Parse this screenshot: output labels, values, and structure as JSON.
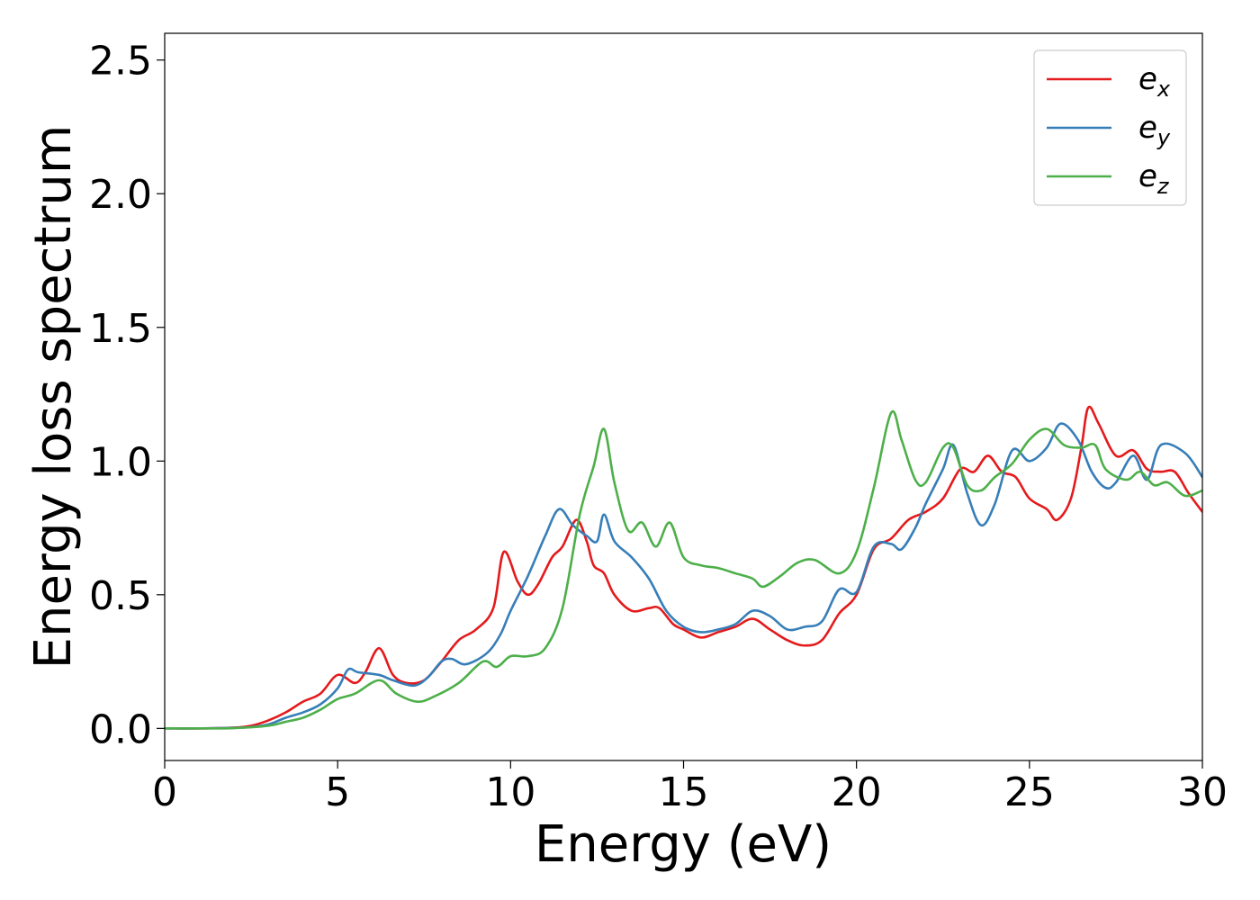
{
  "chart_data": {
    "type": "line",
    "xlabel": "Energy (eV)",
    "ylabel": "Energy loss spectrum",
    "xlim": [
      0,
      30
    ],
    "ylim": [
      -0.12,
      2.6
    ],
    "xticks": [
      0,
      5,
      10,
      15,
      20,
      25,
      30
    ],
    "xtick_labels": [
      "0",
      "5",
      "10",
      "15",
      "20",
      "25",
      "30"
    ],
    "yticks": [
      0.0,
      0.5,
      1.0,
      1.5,
      2.0,
      2.5
    ],
    "ytick_labels": [
      "0.0",
      "0.5",
      "1.0",
      "1.5",
      "2.0",
      "2.5"
    ],
    "grid": false,
    "legend_position": "top-right",
    "series": [
      {
        "name": "e",
        "subscript": "x",
        "color": "#e41a1c",
        "points": [
          [
            0,
            0
          ],
          [
            1,
            0
          ],
          [
            2,
            0.003
          ],
          [
            2.5,
            0.01
          ],
          [
            3,
            0.03
          ],
          [
            3.5,
            0.06
          ],
          [
            4,
            0.1
          ],
          [
            4.5,
            0.13
          ],
          [
            5,
            0.2
          ],
          [
            5.5,
            0.17
          ],
          [
            5.8,
            0.21
          ],
          [
            6.2,
            0.3
          ],
          [
            6.6,
            0.2
          ],
          [
            7,
            0.17
          ],
          [
            7.5,
            0.18
          ],
          [
            8,
            0.25
          ],
          [
            8.5,
            0.33
          ],
          [
            9,
            0.37
          ],
          [
            9.5,
            0.45
          ],
          [
            9.8,
            0.66
          ],
          [
            10.2,
            0.55
          ],
          [
            10.5,
            0.5
          ],
          [
            10.8,
            0.54
          ],
          [
            11.2,
            0.64
          ],
          [
            11.5,
            0.68
          ],
          [
            11.9,
            0.78
          ],
          [
            12.2,
            0.7
          ],
          [
            12.4,
            0.61
          ],
          [
            12.7,
            0.58
          ],
          [
            13,
            0.5
          ],
          [
            13.5,
            0.44
          ],
          [
            14,
            0.45
          ],
          [
            14.3,
            0.45
          ],
          [
            14.7,
            0.39
          ],
          [
            15,
            0.37
          ],
          [
            15.5,
            0.34
          ],
          [
            16,
            0.36
          ],
          [
            16.5,
            0.38
          ],
          [
            17,
            0.41
          ],
          [
            17.5,
            0.37
          ],
          [
            18,
            0.33
          ],
          [
            18.5,
            0.31
          ],
          [
            19,
            0.33
          ],
          [
            19.5,
            0.43
          ],
          [
            20,
            0.5
          ],
          [
            20.5,
            0.67
          ],
          [
            21,
            0.71
          ],
          [
            21.5,
            0.78
          ],
          [
            22,
            0.81
          ],
          [
            22.5,
            0.86
          ],
          [
            23,
            0.97
          ],
          [
            23.4,
            0.96
          ],
          [
            23.8,
            1.02
          ],
          [
            24.2,
            0.96
          ],
          [
            24.6,
            0.94
          ],
          [
            25,
            0.86
          ],
          [
            25.5,
            0.82
          ],
          [
            25.8,
            0.78
          ],
          [
            26.2,
            0.86
          ],
          [
            26.5,
            1.05
          ],
          [
            26.7,
            1.2
          ],
          [
            27,
            1.14
          ],
          [
            27.5,
            1.02
          ],
          [
            28,
            1.04
          ],
          [
            28.4,
            0.97
          ],
          [
            28.8,
            0.96
          ],
          [
            29.2,
            0.96
          ],
          [
            29.6,
            0.88
          ],
          [
            30,
            0.81
          ]
        ]
      },
      {
        "name": "e",
        "subscript": "y",
        "color": "#377eb8",
        "points": [
          [
            0,
            0
          ],
          [
            1,
            0
          ],
          [
            2,
            0.002
          ],
          [
            2.5,
            0.005
          ],
          [
            3,
            0.015
          ],
          [
            3.5,
            0.04
          ],
          [
            4,
            0.06
          ],
          [
            4.5,
            0.09
          ],
          [
            5,
            0.15
          ],
          [
            5.3,
            0.22
          ],
          [
            5.6,
            0.21
          ],
          [
            6.2,
            0.2
          ],
          [
            6.6,
            0.18
          ],
          [
            7.2,
            0.16
          ],
          [
            7.6,
            0.19
          ],
          [
            8,
            0.25
          ],
          [
            8.3,
            0.26
          ],
          [
            8.7,
            0.24
          ],
          [
            9.3,
            0.28
          ],
          [
            9.7,
            0.35
          ],
          [
            10,
            0.44
          ],
          [
            10.5,
            0.57
          ],
          [
            11,
            0.72
          ],
          [
            11.4,
            0.82
          ],
          [
            11.8,
            0.76
          ],
          [
            12.2,
            0.72
          ],
          [
            12.5,
            0.7
          ],
          [
            12.7,
            0.8
          ],
          [
            13,
            0.7
          ],
          [
            13.5,
            0.64
          ],
          [
            14,
            0.56
          ],
          [
            14.5,
            0.44
          ],
          [
            15,
            0.38
          ],
          [
            15.5,
            0.36
          ],
          [
            16,
            0.37
          ],
          [
            16.5,
            0.39
          ],
          [
            17,
            0.44
          ],
          [
            17.5,
            0.42
          ],
          [
            18,
            0.37
          ],
          [
            18.5,
            0.38
          ],
          [
            19,
            0.4
          ],
          [
            19.5,
            0.52
          ],
          [
            20,
            0.51
          ],
          [
            20.5,
            0.68
          ],
          [
            21,
            0.69
          ],
          [
            21.3,
            0.67
          ],
          [
            21.7,
            0.75
          ],
          [
            22,
            0.84
          ],
          [
            22.5,
            0.97
          ],
          [
            22.8,
            1.06
          ],
          [
            23.2,
            0.88
          ],
          [
            23.6,
            0.76
          ],
          [
            24,
            0.84
          ],
          [
            24.5,
            1.04
          ],
          [
            25,
            1.0
          ],
          [
            25.5,
            1.05
          ],
          [
            25.9,
            1.14
          ],
          [
            26.4,
            1.08
          ],
          [
            26.8,
            0.96
          ],
          [
            27.2,
            0.9
          ],
          [
            27.5,
            0.92
          ],
          [
            28,
            1.02
          ],
          [
            28.4,
            0.93
          ],
          [
            28.8,
            1.06
          ],
          [
            29.5,
            1.03
          ],
          [
            30,
            0.94
          ]
        ]
      },
      {
        "name": "e",
        "subscript": "z",
        "color": "#4daf4a",
        "points": [
          [
            0,
            0
          ],
          [
            1,
            0
          ],
          [
            2,
            0.001
          ],
          [
            3,
            0.01
          ],
          [
            3.5,
            0.025
          ],
          [
            4,
            0.04
          ],
          [
            4.5,
            0.07
          ],
          [
            5,
            0.11
          ],
          [
            5.5,
            0.13
          ],
          [
            6.2,
            0.18
          ],
          [
            6.7,
            0.13
          ],
          [
            7.3,
            0.1
          ],
          [
            7.8,
            0.12
          ],
          [
            8.5,
            0.17
          ],
          [
            9.2,
            0.25
          ],
          [
            9.6,
            0.23
          ],
          [
            10,
            0.27
          ],
          [
            10.5,
            0.27
          ],
          [
            11,
            0.3
          ],
          [
            11.5,
            0.45
          ],
          [
            12,
            0.8
          ],
          [
            12.4,
            0.98
          ],
          [
            12.7,
            1.12
          ],
          [
            13,
            0.92
          ],
          [
            13.4,
            0.74
          ],
          [
            13.8,
            0.77
          ],
          [
            14.2,
            0.68
          ],
          [
            14.6,
            0.77
          ],
          [
            15,
            0.64
          ],
          [
            15.5,
            0.61
          ],
          [
            16,
            0.6
          ],
          [
            16.5,
            0.58
          ],
          [
            17,
            0.56
          ],
          [
            17.3,
            0.53
          ],
          [
            17.8,
            0.57
          ],
          [
            18.3,
            0.62
          ],
          [
            18.8,
            0.63
          ],
          [
            19.5,
            0.58
          ],
          [
            20,
            0.66
          ],
          [
            20.5,
            0.9
          ],
          [
            21,
            1.18
          ],
          [
            21.3,
            1.08
          ],
          [
            21.7,
            0.93
          ],
          [
            22,
            0.92
          ],
          [
            22.5,
            1.05
          ],
          [
            22.8,
            1.05
          ],
          [
            23.2,
            0.91
          ],
          [
            23.6,
            0.89
          ],
          [
            24,
            0.94
          ],
          [
            24.5,
            0.99
          ],
          [
            25,
            1.08
          ],
          [
            25.5,
            1.12
          ],
          [
            26,
            1.06
          ],
          [
            26.5,
            1.05
          ],
          [
            26.9,
            1.06
          ],
          [
            27.2,
            0.97
          ],
          [
            27.8,
            0.93
          ],
          [
            28.2,
            0.96
          ],
          [
            28.6,
            0.91
          ],
          [
            29,
            0.92
          ],
          [
            29.5,
            0.87
          ],
          [
            30,
            0.89
          ]
        ]
      }
    ]
  }
}
